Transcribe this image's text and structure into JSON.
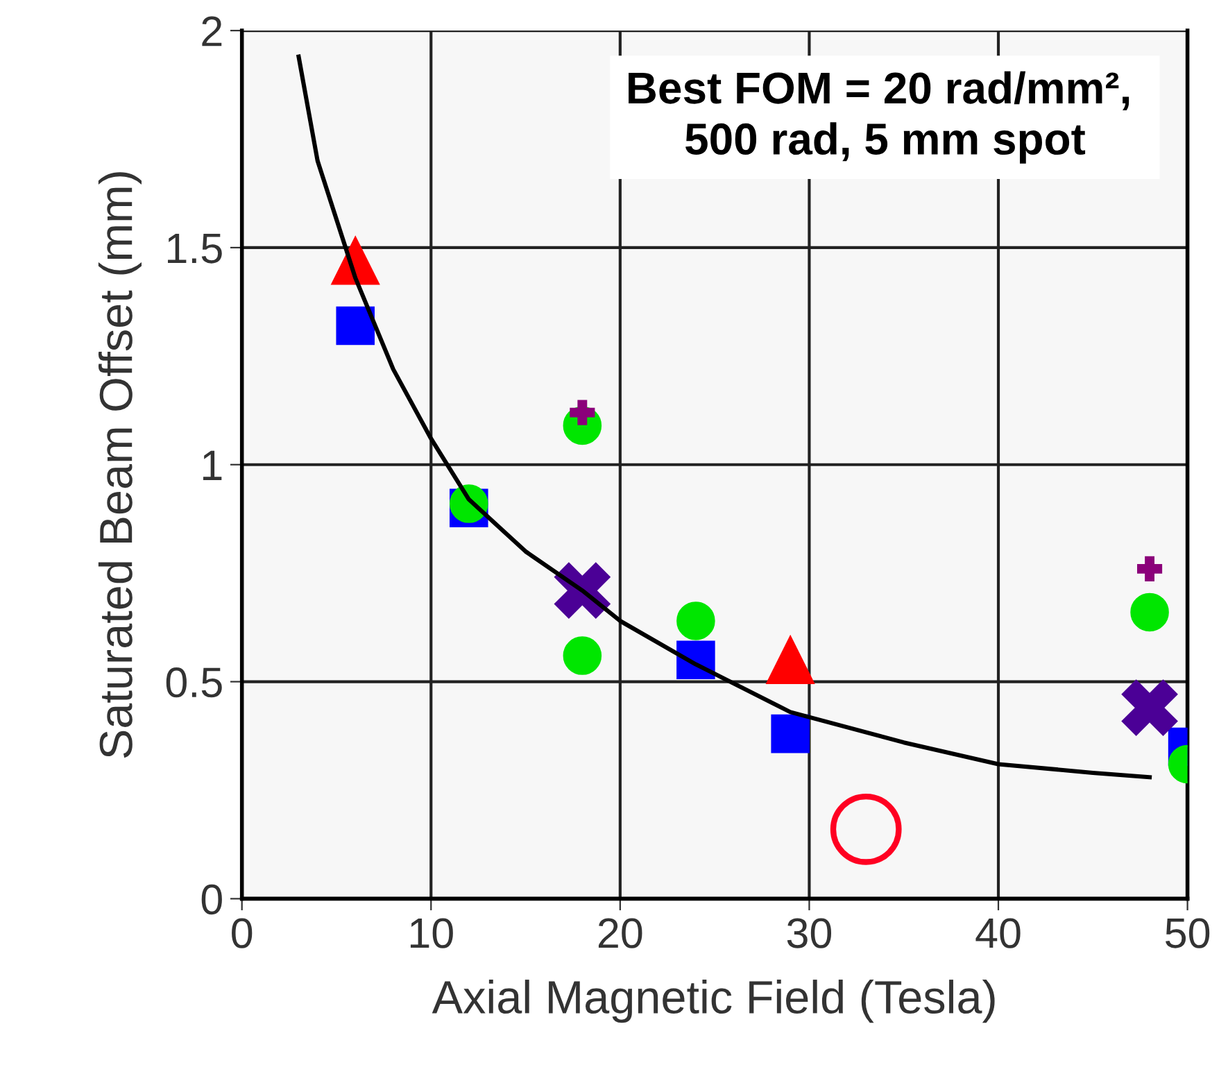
{
  "chart_data": {
    "type": "scatter",
    "xlabel": "Axial Magnetic Field (Tesla)",
    "ylabel": "Saturated Beam Offset (mm)",
    "annotations": [
      "Best FOM = 20 rad/mm², \n500 rad, 5 mm spot"
    ],
    "xlim": [
      0,
      50
    ],
    "ylim": [
      0,
      2
    ],
    "xticks": [
      0,
      10,
      20,
      30,
      40,
      50
    ],
    "yticks": [
      0,
      0.5,
      1,
      1.5,
      2
    ],
    "grid": true,
    "series": [
      {
        "type": "line",
        "color": "#000000",
        "marker": "none",
        "line_style": "solid",
        "x": [
          3,
          4,
          6,
          8,
          10,
          12,
          15,
          18,
          20,
          24,
          29,
          35,
          40,
          45,
          48
        ],
        "values": [
          1.94,
          1.7,
          1.43,
          1.22,
          1.06,
          0.92,
          0.8,
          0.71,
          0.64,
          0.54,
          0.43,
          0.36,
          0.31,
          0.29,
          0.28
        ]
      },
      {
        "color": "#ff0000",
        "marker": "triangle",
        "x": [
          6,
          29
        ],
        "values": [
          1.47,
          0.55
        ]
      },
      {
        "color": "#0000ff",
        "marker": "square",
        "x": [
          6,
          12,
          24,
          29,
          50
        ],
        "values": [
          1.32,
          0.9,
          0.55,
          0.38,
          0.35
        ]
      },
      {
        "color": "#00e600",
        "marker": "circle",
        "x": [
          12,
          18,
          18,
          24,
          48,
          50
        ],
        "values": [
          0.91,
          1.09,
          0.56,
          0.64,
          0.66,
          0.31
        ]
      },
      {
        "color": "#4b0096",
        "marker": "cross",
        "x": [
          18,
          48
        ],
        "values": [
          0.71,
          0.44
        ]
      },
      {
        "color": "#8b007a",
        "marker": "plus",
        "x": [
          18,
          48
        ],
        "values": [
          1.12,
          0.76
        ]
      },
      {
        "color": "#ff0022",
        "x": [
          33
        ],
        "values": [
          0.16
        ]
      }
    ]
  }
}
